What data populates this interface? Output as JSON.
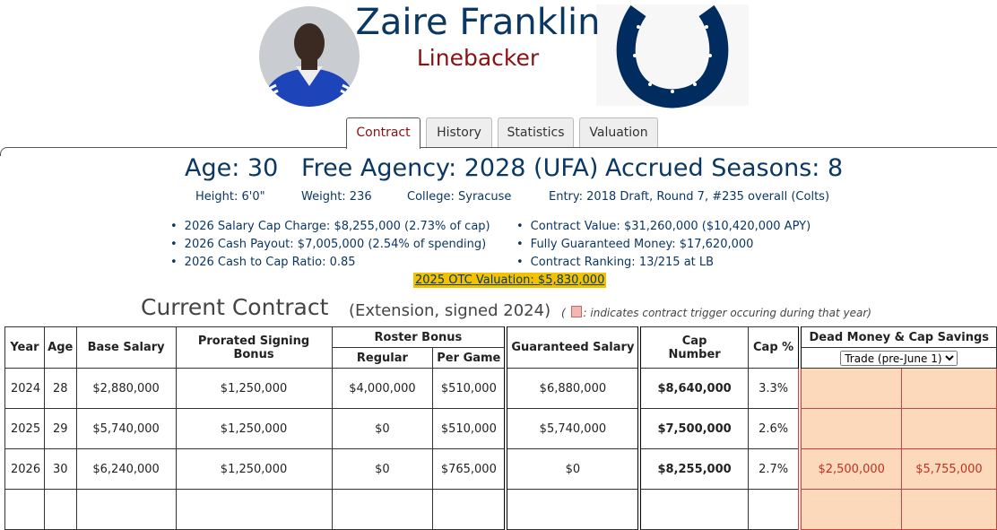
{
  "header": {
    "name": "Zaire Franklin",
    "position": "Linebacker"
  },
  "tabs": [
    "Contract",
    "History",
    "Statistics",
    "Valuation"
  ],
  "summary": {
    "age": "Age: 30",
    "free_agency": "Free Agency: 2028 (UFA)",
    "accrued": "Accrued Seasons: 8",
    "details": [
      "Height: 6'0\"",
      "Weight: 236",
      "College: Syracuse",
      "Entry: 2018 Draft, Round 7, #235 overall (Colts)"
    ],
    "left_bullets": [
      "2026 Salary Cap Charge: $8,255,000 (2.73% of cap)",
      "2026 Cash Payout: $7,005,000 (2.54% of spending)",
      "2026 Cash to Cap Ratio: 0.85"
    ],
    "right_bullets": [
      "Contract Value: $31,260,000 ($10,420,000 APY)",
      "Fully Guaranteed Money: $17,620,000",
      "Contract Ranking: 13/215 at LB"
    ],
    "valuation": "2025 OTC Valuation: $5,830,000"
  },
  "contract": {
    "title": "Current Contract",
    "subtitle": "(Extension, signed 2024)",
    "note_open": "(",
    "note": ": indicates contract trigger occuring during that year)",
    "table": {
      "headers": [
        "Year",
        "Age",
        "Base Salary",
        "Prorated Signing Bonus",
        "Roster Bonus",
        "Guaranteed Salary",
        "Cap Number",
        "Cap %",
        "Dead Money & Cap Savings"
      ],
      "sub_headers": [
        "Regular",
        "Per Game"
      ],
      "select": "Trade (pre-June 1)",
      "rows": [
        [
          "2024",
          "28",
          "$2,880,000",
          "$1,250,000",
          "$4,000,000",
          "$510,000",
          "$6,880,000",
          "$8,640,000",
          "3.3%"
        ],
        [
          "2025",
          "29",
          "$5,740,000",
          "$1,250,000",
          "$0",
          "$510,000",
          "$5,740,000",
          "$7,500,000",
          "2.6%"
        ],
        [
          "2026",
          "30",
          "$6,240,000",
          "$1,250,000",
          "$0",
          "$765,000",
          "$0",
          "$8,255,000",
          "2.7%",
          "$2,500,000",
          "$5,755,000"
        ]
      ]
    }
  }
}
